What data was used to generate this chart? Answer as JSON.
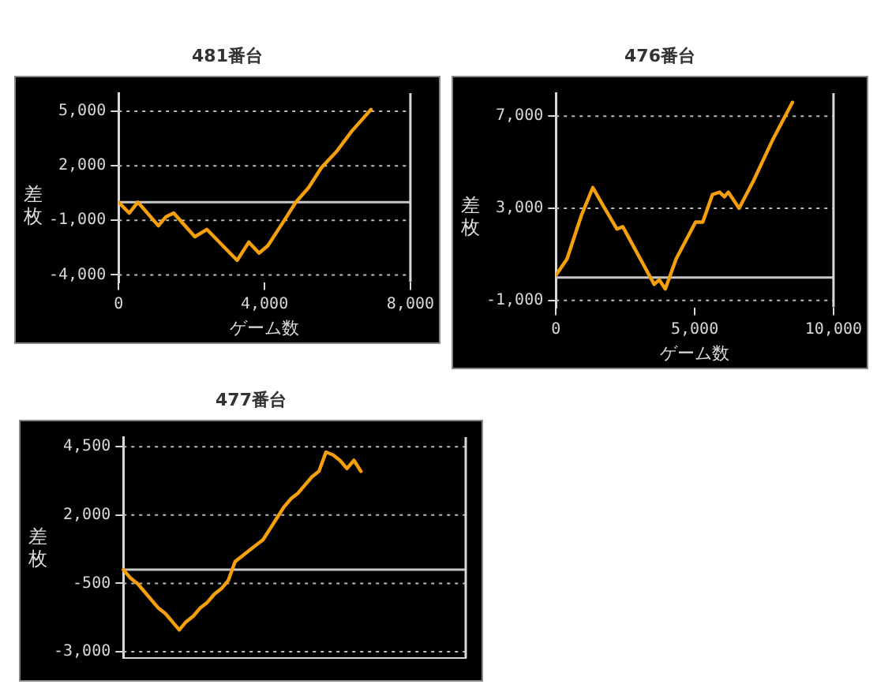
{
  "chart_data": [
    {
      "type": "line",
      "title": "481番台",
      "xlabel": "ゲーム数",
      "ylabel": "差枚",
      "x": [
        0,
        290,
        530,
        1090,
        1300,
        1510,
        2090,
        2420,
        3250,
        3570,
        3850,
        4090,
        4510,
        4860,
        5210,
        5560,
        5980,
        6390,
        6920
      ],
      "series": [
        {
          "color": "#f5a00a",
          "values": [
            0,
            -600,
            0,
            -1300,
            -800,
            -600,
            -1900,
            -1500,
            -3200,
            -2200,
            -2800,
            -2400,
            -1100,
            0,
            800,
            1900,
            2800,
            3900,
            5100
          ]
        }
      ],
      "xlim": [
        0,
        8000
      ],
      "xticks": [
        0,
        {
          "value": 4000,
          "label": "4,000"
        },
        {
          "value": 8000,
          "label": "8,000"
        }
      ],
      "ylim": [
        -4400,
        6000
      ],
      "yticks": [
        {
          "value": -4000,
          "label": "-4,000"
        },
        {
          "value": -1000,
          "label": "-1,000"
        },
        {
          "value": 2000,
          "label": "2,000"
        },
        {
          "value": 5000,
          "label": "5,000"
        }
      ],
      "ref_lines": [
        {
          "axis": "y",
          "value": 0,
          "color": "#c8c8c8"
        }
      ],
      "grid": "y",
      "legend": false
    },
    {
      "type": "line",
      "title": "476番台",
      "xlabel": "ゲーム数",
      "ylabel": "差枚",
      "x": [
        0,
        400,
        920,
        1330,
        1710,
        2200,
        2410,
        3540,
        3720,
        3940,
        4330,
        5030,
        5290,
        5640,
        5900,
        6070,
        6210,
        6600,
        7120,
        7820,
        8520
      ],
      "series": [
        {
          "color": "#f5a00a",
          "values": [
            100,
            800,
            2700,
            3900,
            3100,
            2100,
            2200,
            -300,
            -100,
            -500,
            800,
            2400,
            2400,
            3600,
            3700,
            3500,
            3700,
            3000,
            4200,
            6000,
            7600
          ]
        }
      ],
      "xlim": [
        0,
        10000
      ],
      "xticks": [
        0,
        {
          "value": 5000,
          "label": "5,000"
        },
        {
          "value": 10000,
          "label": "10,000"
        }
      ],
      "ylim": [
        -1300,
        8000
      ],
      "yticks": [
        {
          "value": -1000,
          "label": "-1,000"
        },
        {
          "value": 3000,
          "label": "3,000"
        },
        {
          "value": 7000,
          "label": "7,000"
        }
      ],
      "ref_lines": [
        {
          "axis": "y",
          "value": 0,
          "color": "#c8c8c8"
        }
      ],
      "grid": "y",
      "legend": false
    },
    {
      "type": "line",
      "title": "477番台",
      "ylabel": "差枚",
      "categories": [
        null,
        null,
        null,
        null,
        null,
        null,
        null,
        null,
        null,
        null,
        null,
        null,
        null,
        null,
        null,
        null,
        null,
        null,
        null,
        null,
        null,
        null,
        null,
        null,
        null,
        null,
        null,
        null,
        null,
        null,
        null,
        null,
        null,
        null,
        null,
        null,
        null,
        null,
        null,
        null,
        null,
        null,
        null,
        null,
        null,
        null,
        null,
        null,
        null,
        null
      ],
      "series": [
        {
          "color": "#f5a00a",
          "values": [
            0,
            -300,
            -500,
            -800,
            -1100,
            -1400,
            -1600,
            -1900,
            -2200,
            -1900,
            -1700,
            -1400,
            -1200,
            -900,
            -700,
            -400,
            300,
            500,
            700,
            900,
            1100,
            1500,
            1900,
            2300,
            2600,
            2800,
            3100,
            3400,
            3600,
            4300,
            4200,
            4000,
            3700,
            4000,
            3600,
            null,
            null,
            null,
            null,
            null,
            null,
            null,
            null,
            null,
            null,
            null,
            null,
            null,
            null,
            null
          ]
        }
      ],
      "ylim": [
        -3230,
        4850
      ],
      "yticks": [
        {
          "value": -3000,
          "label": "-3,000"
        },
        {
          "value": -500,
          "label": "-500"
        },
        {
          "value": 2000,
          "label": "2,000"
        },
        {
          "value": 4500,
          "label": "4,500"
        }
      ],
      "ref_lines": [
        {
          "axis": "y",
          "value": 0,
          "color": "#c8c8c8"
        }
      ],
      "grid": "y",
      "legend": false,
      "tick_labels": "y"
    }
  ]
}
